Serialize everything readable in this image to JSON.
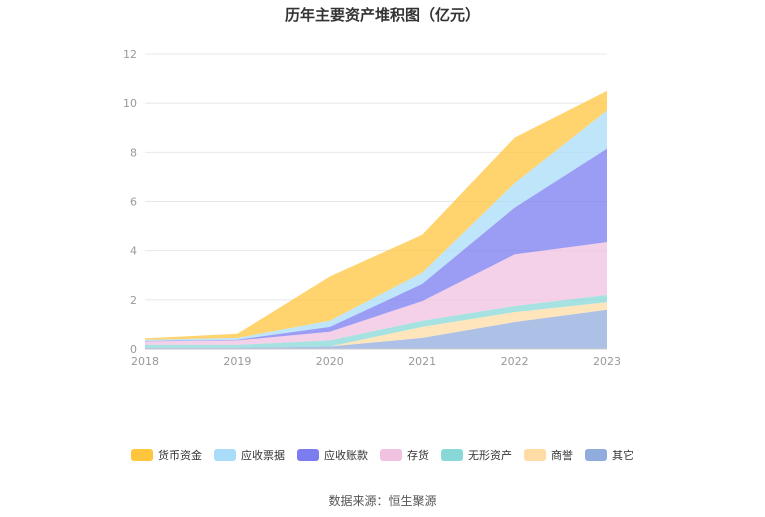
{
  "title": "历年主要资产堆积图（亿元）",
  "source": "数据来源：恒生聚源",
  "chart_data": {
    "type": "area",
    "stacked": true,
    "x": [
      "2018",
      "2019",
      "2020",
      "2021",
      "2022",
      "2023"
    ],
    "ylim": [
      0,
      12
    ],
    "yticks": [
      "0",
      "2",
      "4",
      "6",
      "8",
      "10",
      "12"
    ],
    "grid": true,
    "legend_position": "bottom",
    "series": [
      {
        "name": "货币资金",
        "color": "#ffc53d",
        "values": [
          0.06,
          0.17,
          1.8,
          1.55,
          1.85,
          0.8
        ]
      },
      {
        "name": "应收票据",
        "color": "#a8dcf8",
        "values": [
          0.04,
          0.07,
          0.25,
          0.45,
          1.0,
          1.55
        ]
      },
      {
        "name": "应收账款",
        "color": "#7a7cf0",
        "values": [
          0.02,
          0.03,
          0.2,
          0.7,
          1.9,
          3.8
        ]
      },
      {
        "name": "存货",
        "color": "#f0c1e0",
        "values": [
          0.14,
          0.18,
          0.35,
          0.8,
          2.1,
          2.15
        ]
      },
      {
        "name": "无形资产",
        "color": "#88d8d8",
        "values": [
          0.12,
          0.12,
          0.25,
          0.25,
          0.25,
          0.3
        ]
      },
      {
        "name": "商誉",
        "color": "#ffdca6",
        "values": [
          0.0,
          0.0,
          0.0,
          0.45,
          0.4,
          0.3
        ]
      },
      {
        "name": "其它",
        "color": "#90acdc",
        "values": [
          0.05,
          0.05,
          0.1,
          0.45,
          1.1,
          1.6
        ]
      }
    ]
  }
}
